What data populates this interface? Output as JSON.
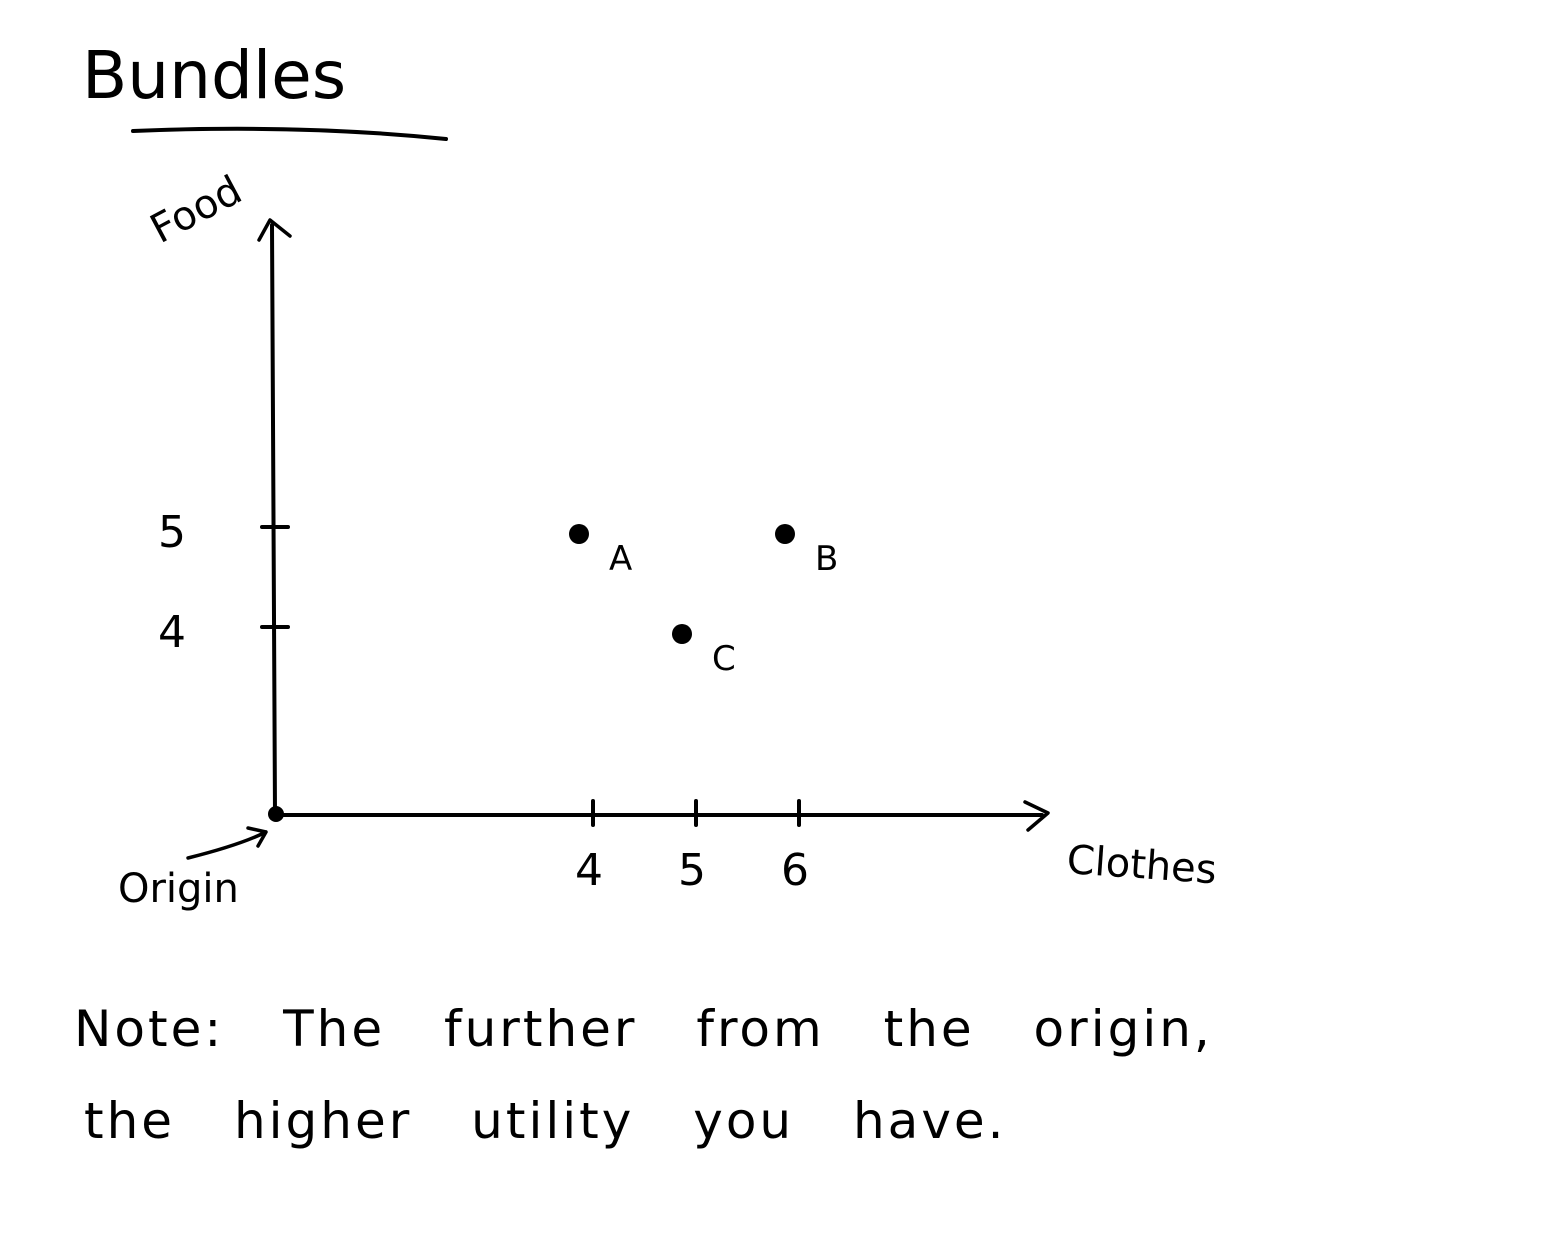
{
  "title": "Bundles",
  "chart_data": {
    "type": "scatter",
    "title": "Bundles",
    "xlabel": "Clothes",
    "ylabel": "Food",
    "x_ticks": [
      4,
      5,
      6
    ],
    "y_ticks": [
      4,
      5
    ],
    "xlim": [
      0,
      13
    ],
    "ylim": [
      0,
      10
    ],
    "points": [
      {
        "label": "A",
        "x": 4,
        "y": 5
      },
      {
        "label": "B",
        "x": 6,
        "y": 5
      },
      {
        "label": "C",
        "x": 5,
        "y": 4
      }
    ],
    "annotations": [
      {
        "text": "Origin",
        "x": 0,
        "y": 0
      }
    ],
    "grid": false
  },
  "note": {
    "line1": "Note: The further from the origin,",
    "line2": "the higher utility you have."
  },
  "colors": {
    "ink": "#000000",
    "background": "#ffffff"
  }
}
